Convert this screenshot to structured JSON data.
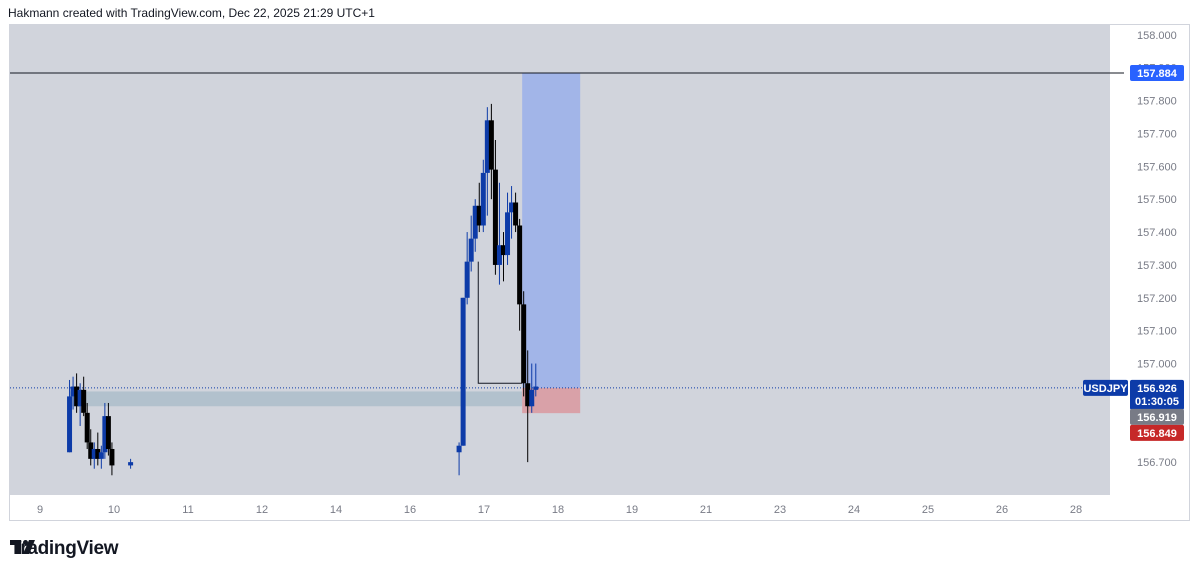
{
  "header": {
    "attribution": "Hakmann created with TradingView.com, Dec 22, 2025 21:29 UTC+1"
  },
  "footer": {
    "brand": "TradingView",
    "logo_icon": "tradingview-logo-icon"
  },
  "colors": {
    "background": "#d1d4dc",
    "bull": "#0d3ba8",
    "bear": "#000000",
    "target_zone": "#a2b5e8",
    "stop_zone": "#d9a1a8",
    "support_zone": "#b2c1cd",
    "symbol_tag": "#0d3ba8",
    "target_tag": "#2962ff",
    "entry_tag": "#787b86",
    "stop_tag": "#c62828"
  },
  "chart_data": {
    "type": "candlestick",
    "symbol": "USDJPY",
    "ylim": [
      156.6,
      158.03
    ],
    "xlim": [
      8.4,
      30.2
    ],
    "y_ticks": [
      "158.000",
      "157.900",
      "157.800",
      "157.700",
      "157.600",
      "157.500",
      "157.400",
      "157.300",
      "157.200",
      "157.100",
      "157.000",
      "156.900",
      "156.800",
      "156.700"
    ],
    "x_ticks": [
      {
        "label": "9",
        "x": 9
      },
      {
        "label": "10",
        "x": 10
      },
      {
        "label": "11",
        "x": 11
      },
      {
        "label": "12",
        "x": 12
      },
      {
        "label": "14",
        "x": 13
      },
      {
        "label": "16",
        "x": 14
      },
      {
        "label": "17",
        "x": 15
      },
      {
        "label": "18",
        "x": 16
      },
      {
        "label": "19",
        "x": 17
      },
      {
        "label": "21",
        "x": 18
      },
      {
        "label": "23",
        "x": 19
      },
      {
        "label": "24",
        "x": 20
      },
      {
        "label": "25",
        "x": 21
      },
      {
        "label": "26",
        "x": 22
      },
      {
        "label": "28",
        "x": 23
      }
    ],
    "candles": [
      {
        "x": 9.58,
        "o": 156.73,
        "h": 156.95,
        "l": 156.73,
        "c": 156.9
      },
      {
        "x": 9.65,
        "o": 156.9,
        "h": 156.96,
        "l": 156.86,
        "c": 156.93
      },
      {
        "x": 9.72,
        "o": 156.93,
        "h": 156.97,
        "l": 156.85,
        "c": 156.87
      },
      {
        "x": 9.79,
        "o": 156.87,
        "h": 156.94,
        "l": 156.81,
        "c": 156.92
      },
      {
        "x": 9.86,
        "o": 156.92,
        "h": 156.96,
        "l": 156.84,
        "c": 156.85
      },
      {
        "x": 9.93,
        "o": 156.85,
        "h": 156.88,
        "l": 156.74,
        "c": 156.76
      },
      {
        "x": 10.0,
        "o": 156.76,
        "h": 156.8,
        "l": 156.69,
        "c": 156.71
      },
      {
        "x": 10.07,
        "o": 156.71,
        "h": 156.76,
        "l": 156.68,
        "c": 156.74
      },
      {
        "x": 10.14,
        "o": 156.74,
        "h": 156.79,
        "l": 156.69,
        "c": 156.71
      },
      {
        "x": 10.21,
        "o": 156.71,
        "h": 156.75,
        "l": 156.68,
        "c": 156.73
      },
      {
        "x": 10.28,
        "o": 156.73,
        "h": 156.88,
        "l": 156.71,
        "c": 156.84
      },
      {
        "x": 10.35,
        "o": 156.84,
        "h": 156.88,
        "l": 156.72,
        "c": 156.74
      },
      {
        "x": 10.42,
        "o": 156.74,
        "h": 156.76,
        "l": 156.66,
        "c": 156.69
      },
      {
        "x": 10.79,
        "o": 156.69,
        "h": 156.71,
        "l": 156.68,
        "c": 156.7
      },
      {
        "x": 17.3,
        "o": 156.73,
        "h": 156.76,
        "l": 156.66,
        "c": 156.75
      },
      {
        "x": 17.38,
        "o": 156.75,
        "h": 157.2,
        "l": 156.75,
        "c": 157.2
      },
      {
        "x": 17.46,
        "o": 157.2,
        "h": 157.4,
        "l": 157.18,
        "c": 157.31
      },
      {
        "x": 17.54,
        "o": 157.31,
        "h": 157.45,
        "l": 157.28,
        "c": 157.38
      },
      {
        "x": 17.62,
        "o": 157.38,
        "h": 157.5,
        "l": 157.34,
        "c": 157.48
      },
      {
        "x": 17.7,
        "o": 157.48,
        "h": 157.55,
        "l": 157.4,
        "c": 157.42
      },
      {
        "x": 17.78,
        "o": 157.42,
        "h": 157.62,
        "l": 157.4,
        "c": 157.58
      },
      {
        "x": 17.86,
        "o": 157.58,
        "h": 157.78,
        "l": 157.45,
        "c": 157.74
      },
      {
        "x": 17.94,
        "o": 157.74,
        "h": 157.79,
        "l": 157.5,
        "c": 157.59
      },
      {
        "x": 18.02,
        "o": 157.59,
        "h": 157.68,
        "l": 157.27,
        "c": 157.3
      },
      {
        "x": 18.1,
        "o": 157.3,
        "h": 157.55,
        "l": 157.24,
        "c": 157.36
      },
      {
        "x": 18.18,
        "o": 157.36,
        "h": 157.4,
        "l": 157.25,
        "c": 157.33
      },
      {
        "x": 18.26,
        "o": 157.33,
        "h": 157.52,
        "l": 157.3,
        "c": 157.46
      },
      {
        "x": 18.34,
        "o": 157.46,
        "h": 157.54,
        "l": 157.38,
        "c": 157.49
      },
      {
        "x": 18.42,
        "o": 157.49,
        "h": 157.52,
        "l": 157.4,
        "c": 157.42
      },
      {
        "x": 18.5,
        "o": 157.42,
        "h": 157.44,
        "l": 157.1,
        "c": 157.18
      },
      {
        "x": 18.58,
        "o": 157.18,
        "h": 157.22,
        "l": 156.9,
        "c": 156.94
      },
      {
        "x": 18.66,
        "o": 156.94,
        "h": 157.04,
        "l": 156.7,
        "c": 156.87
      },
      {
        "x": 18.74,
        "o": 156.87,
        "h": 157.0,
        "l": 156.85,
        "c": 156.92
      },
      {
        "x": 18.82,
        "o": 156.92,
        "h": 157.0,
        "l": 156.9,
        "c": 156.93
      }
    ],
    "zones": {
      "support": {
        "x0": 9.58,
        "x1": 18.55,
        "y0": 156.87,
        "y1": 156.915
      },
      "target": {
        "x0": 18.55,
        "x1": 19.7,
        "y0": 156.926,
        "y1": 157.884
      },
      "stop": {
        "x0": 18.55,
        "x1": 19.7,
        "y0": 156.849,
        "y1": 156.926
      }
    },
    "connector": {
      "x0": 17.68,
      "x1": 18.55,
      "y_high": 157.31,
      "y_low": 156.94
    },
    "lines": {
      "target_level": 157.884,
      "current": 156.926
    },
    "price_tags": [
      {
        "price": 157.884,
        "label": "157.884",
        "kind": "target"
      },
      {
        "price": 156.926,
        "label": "156.926",
        "sub": "01:30:05",
        "symbol": "USDJPY",
        "kind": "current"
      },
      {
        "price": 156.919,
        "label": "156.919",
        "kind": "entry"
      },
      {
        "price": 156.849,
        "label": "156.849",
        "kind": "stop"
      }
    ]
  }
}
